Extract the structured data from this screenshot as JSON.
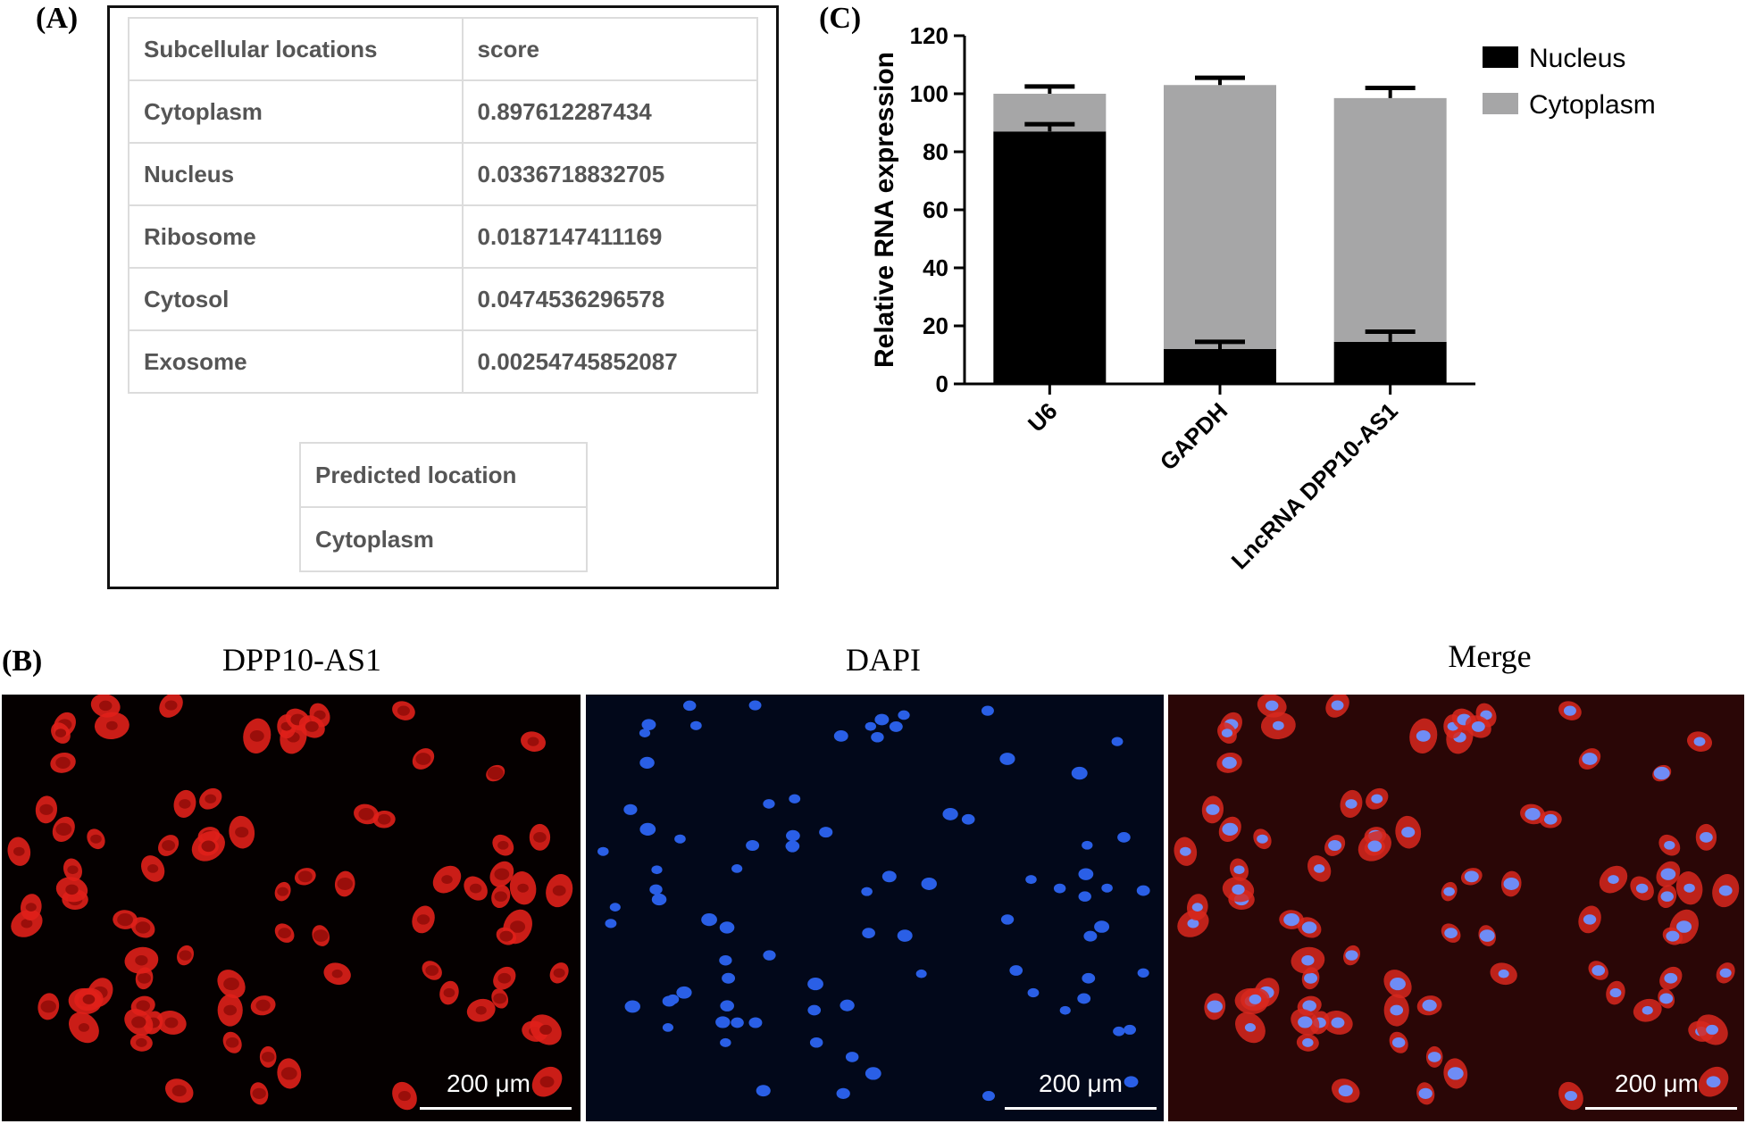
{
  "panels": {
    "a_label": "(A)",
    "b_label": "(B)",
    "c_label": "(C)"
  },
  "table": {
    "headers": [
      "Subcellular locations",
      "score"
    ],
    "rows": [
      [
        "Cytoplasm",
        "0.897612287434"
      ],
      [
        "Nucleus",
        "0.0336718832705"
      ],
      [
        "Ribosome",
        "0.0187147411169"
      ],
      [
        "Cytosol",
        "0.0474536296578"
      ],
      [
        "Exosome",
        "0.00254745852087"
      ]
    ]
  },
  "prediction": {
    "header": "Predicted location",
    "value": "Cytoplasm"
  },
  "chart_data": {
    "type": "bar",
    "stacked": true,
    "categories": [
      "U6",
      "GAPDH",
      "LncRNA DPP10-AS1"
    ],
    "series": [
      {
        "name": "Nucleus",
        "values": [
          87,
          12,
          14.5
        ],
        "errors": [
          2.5,
          2.5,
          3.5
        ],
        "color": "#000000"
      },
      {
        "name": "Cytoplasm",
        "values": [
          13,
          91,
          84
        ],
        "errors": [
          2.5,
          2.5,
          3.5
        ],
        "color": "#a6a6a7"
      }
    ],
    "ylabel": "Relative  RNA  expression",
    "xlabel": "",
    "ylim": [
      0,
      120
    ],
    "yticks": [
      0,
      20,
      40,
      60,
      80,
      100,
      120
    ],
    "legend": "top-right",
    "grid": false
  },
  "microscopy": {
    "captions": [
      "DPP10-AS1",
      "DAPI",
      "Merge"
    ],
    "scale_label": "200 μm"
  }
}
